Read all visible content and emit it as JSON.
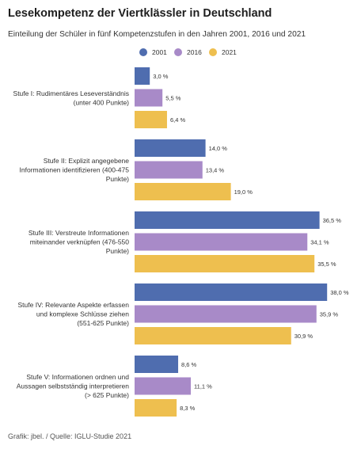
{
  "title": "Lesekompetenz der Viertklässler in Deutschland",
  "subtitle": "Einteilung der Schüler in fünf Kompetenzstufen in den Jahren 2001, 2016 und 2021",
  "footer": "Grafik: jbel. / Quelle: IGLU-Studie 2021",
  "colors": {
    "2001": "#4f6daf",
    "2016": "#a88ac8",
    "2021": "#eebf4f"
  },
  "chart_data": {
    "type": "bar",
    "orientation": "horizontal",
    "categories": [
      [
        "Stufe I: Rudimentäres Leseverständnis",
        "(unter 400 Punkte)"
      ],
      [
        "Stufe II: Explizit angegebene",
        "Informationen identifizieren (400-475",
        "Punkte)"
      ],
      [
        "Stufe III: Verstreute Informationen",
        "miteinander verknüpfen (476-550",
        "Punkte)"
      ],
      [
        "Stufe IV: Relevante Aspekte erfassen",
        "und komplexe Schlüsse ziehen",
        "(551-625 Punkte)"
      ],
      [
        "Stufe V: Informationen ordnen und",
        "Aussagen selbstständig interpretieren",
        "(> 625 Punkte)"
      ]
    ],
    "series": [
      {
        "name": "2001",
        "values": [
          3.0,
          14.0,
          36.5,
          38.0,
          8.6
        ],
        "labels": [
          "3,0 %",
          "14,0 %",
          "36,5 %",
          "38,0 %",
          "8,6 %"
        ]
      },
      {
        "name": "2016",
        "values": [
          5.5,
          13.4,
          34.1,
          35.9,
          11.1
        ],
        "labels": [
          "5,5 %",
          "13,4 %",
          "34,1 %",
          "35,9 %",
          "11,1 %"
        ]
      },
      {
        "name": "2021",
        "values": [
          6.4,
          19.0,
          35.5,
          30.9,
          8.3
        ],
        "labels": [
          "6,4 %",
          "19,0 %",
          "35,5 %",
          "30,9 %",
          "8,3 %"
        ]
      }
    ],
    "legend_position": "top-center",
    "grid": false
  }
}
